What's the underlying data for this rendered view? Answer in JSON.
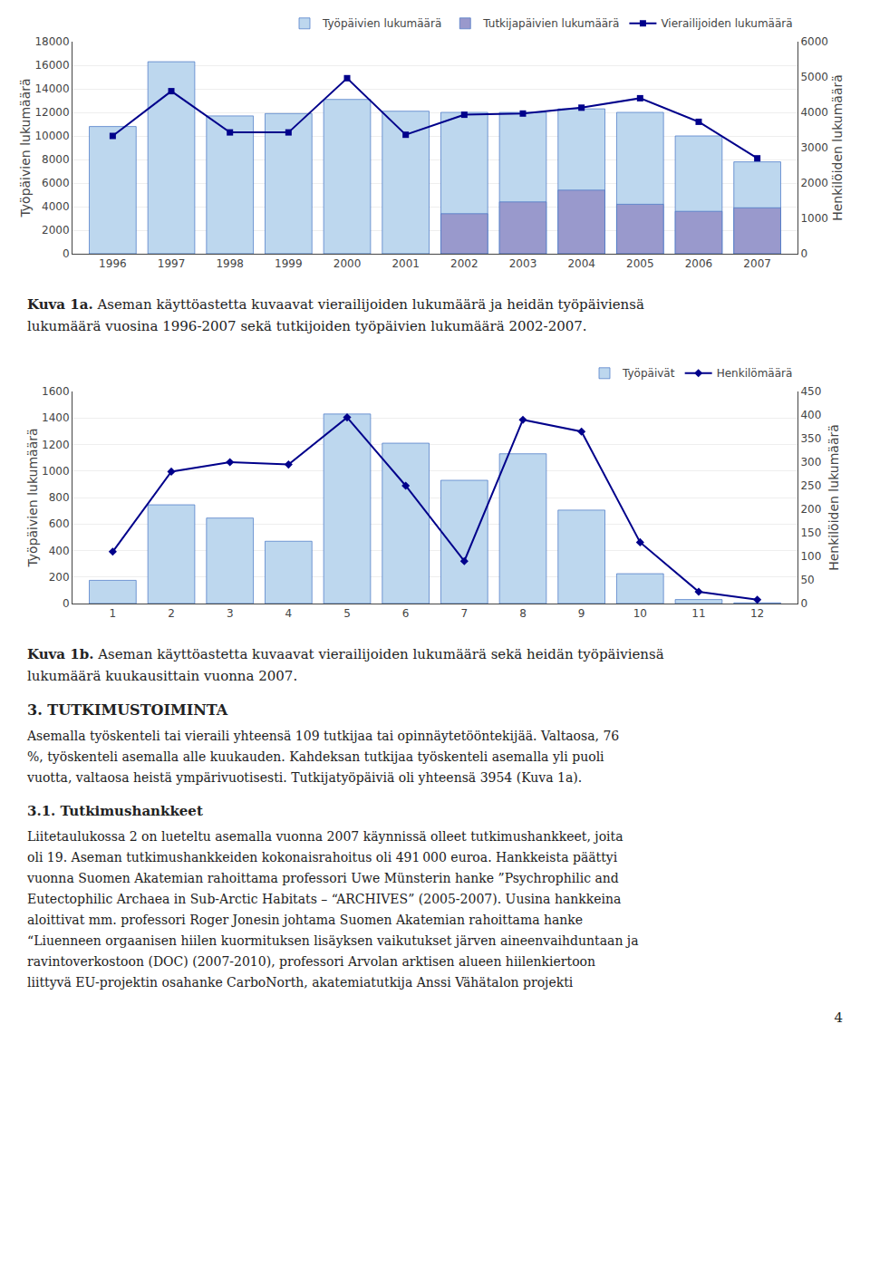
{
  "chart_data": [
    {
      "type": "bar",
      "categories": [
        "1996",
        "1997",
        "1998",
        "1999",
        "2000",
        "2001",
        "2002",
        "2003",
        "2004",
        "2005",
        "2006",
        "2007"
      ],
      "series": [
        {
          "name": "Työpäivien lukumäärä",
          "type": "bar",
          "color": "#BDD7EE",
          "values": [
            10800,
            16300,
            11700,
            11900,
            13100,
            12100,
            12000,
            12000,
            12300,
            12000,
            10000,
            7800
          ]
        },
        {
          "name": "Tutkijapäivien lukumäärä",
          "type": "bar",
          "color": "#9999CC",
          "values": [
            null,
            null,
            null,
            null,
            null,
            null,
            3400,
            4400,
            5400,
            4200,
            3600,
            3900
          ]
        },
        {
          "name": "Vierailijoiden lukumäärä",
          "type": "line",
          "axis": "y2",
          "color": "#00008B",
          "marker": "square",
          "line_style": "solid",
          "values": [
            3333,
            4600,
            3433,
            3433,
            4967,
            3367,
            3933,
            3967,
            4133,
            4400,
            3733,
            2700
          ]
        }
      ],
      "ylabel": "Työpäivien lukumäärä",
      "y2label": "Henkilöiden lukumäärä",
      "ylim": [
        0,
        18000
      ],
      "yticks": [
        0,
        2000,
        4000,
        6000,
        8000,
        10000,
        12000,
        14000,
        16000,
        18000
      ],
      "y2lim": [
        0,
        6000
      ],
      "y2ticks": [
        0,
        1000,
        2000,
        3000,
        4000,
        5000,
        6000
      ],
      "grid": true,
      "legend": "upper right",
      "annotations": [
        "Kuva 1a.",
        "Aseman käyttöastetta kuvaavat vierailijoiden lukumäärä ja heidän työpäiviensä",
        "lukumäärä vuosina 1996-2007 sekä tutkijoiden työpäivien lukumäärä 2002-2007."
      ]
    },
    {
      "type": "bar",
      "categories": [
        "1",
        "2",
        "3",
        "4",
        "5",
        "6",
        "7",
        "8",
        "9",
        "10",
        "11",
        "12"
      ],
      "series": [
        {
          "name": "Työpäivät",
          "type": "bar",
          "color": "#BDD7EE",
          "values": [
            175,
            745,
            645,
            470,
            1430,
            1210,
            930,
            1130,
            705,
            225,
            30,
            5
          ]
        },
        {
          "name": "Henkilömäärä",
          "type": "line",
          "axis": "y2",
          "color": "#00008B",
          "marker": "diamond",
          "line_style": "solid",
          "values": [
            110,
            280,
            300,
            295,
            395,
            250,
            90,
            390,
            365,
            130,
            25,
            8
          ]
        }
      ],
      "ylabel": "Työpäivien lukumäärä",
      "y2label": "Henkilöiden lukumäärä",
      "ylim": [
        0,
        1600
      ],
      "yticks": [
        0,
        200,
        400,
        600,
        800,
        1000,
        1200,
        1400,
        1600
      ],
      "y2lim": [
        0,
        450
      ],
      "y2ticks": [
        0,
        50,
        100,
        150,
        200,
        250,
        300,
        350,
        400,
        450
      ],
      "grid": true,
      "legend": "upper right",
      "annotations": [
        "Kuva 1b.",
        "Aseman käyttöastetta kuvaavat vierailijoiden lukumäärä sekä heidän työpäiviensä",
        "lukumäärä kuukausittain vuonna 2007."
      ]
    }
  ],
  "annotations": [
    {
      "heading": "3. TUTKIMUSTOIMINTA",
      "lines": [
        "Asemalla työskenteli tai vieraili yhteensä 109 tutkijaa tai opinnäytetööntekijää. Valtaosa, 76",
        "%, työskenteli asemalla alle kuukauden. Kahdeksan tutkijaa työskenteli asemalla yli puoli",
        "vuotta, valtaosa heistä ympärivuotisesti. Tutkijatyöpäiviä oli yhteensä 3954 (Kuva 1a)."
      ]
    },
    {
      "heading": "3.1. Tutkimushankkeet",
      "lines": [
        "Liitetaulukossa 2 on lueteltu asemalla vuonna 2007 käynnissä olleet tutkimushankkeet, joita",
        "oli 19. Aseman tutkimushankkeiden kokonaisrahoitus oli 491 000 euroa. Hankkeista päättyi",
        "vuonna Suomen Akatemian rahoittama professori Uwe Münsterin hanke ”Psychrophilic and",
        "Eutectophilic Archaea in Sub-Arctic Habitats – “ARCHIVES” (2005-2007). Uusina hankkeina",
        "aloittivat mm. professori Roger Jonesin johtama Suomen Akatemian rahoittama hanke",
        "“Liuenneen orgaanisen hiilen kuormituksen lisäyksen vaikutukset järven aineenvaihduntaan ja",
        "ravintoverkostoon (DOC) (2007-2010), professori Arvolan arktisen alueen hiilenkiertoon",
        "liittyvä EU-projektin osahanke CarboNorth, akatemiatutkija Anssi Vähätalon projekti"
      ]
    }
  ],
  "page_number": "4"
}
